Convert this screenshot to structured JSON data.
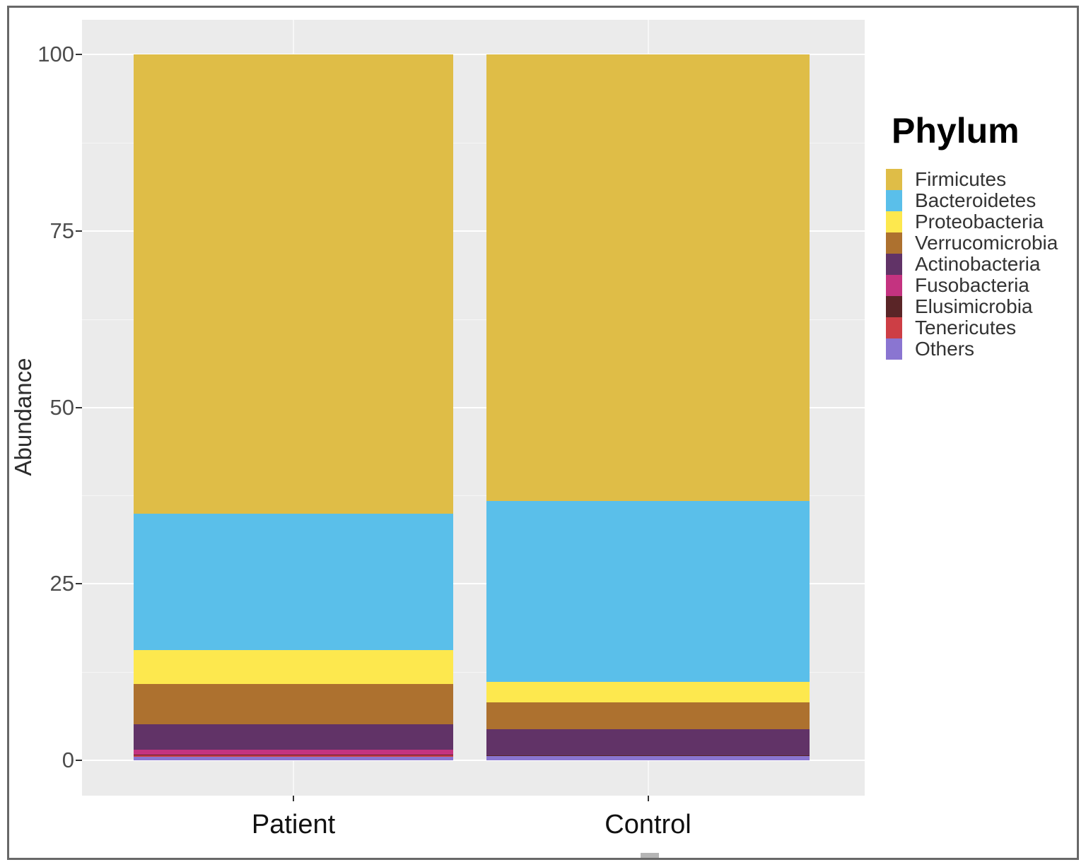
{
  "chart_data": {
    "type": "bar",
    "stacked": true,
    "legend_title": "Phylum",
    "legend_position": "right",
    "ylabel": "Abundance",
    "xlabel": "",
    "ylim": [
      0,
      100
    ],
    "yticks": [
      0,
      25,
      50,
      75,
      100
    ],
    "grid": true,
    "panel_bg": "#ebebeb",
    "gridline_color": "#ffffff",
    "categories": [
      "Patient",
      "Control"
    ],
    "stack_order": "first series renders at top of bar",
    "series": [
      {
        "name": "Firmicutes",
        "color": "#dfbd47",
        "values": [
          65.1,
          63.3
        ]
      },
      {
        "name": "Bacteroidetes",
        "color": "#5abfea",
        "values": [
          19.3,
          25.6
        ]
      },
      {
        "name": "Proteobacteria",
        "color": "#fde84e",
        "values": [
          4.8,
          2.9
        ]
      },
      {
        "name": "Verrucomicrobia",
        "color": "#ad712f",
        "values": [
          5.7,
          3.8
        ]
      },
      {
        "name": "Actinobacteria",
        "color": "#613367",
        "values": [
          3.6,
          3.7
        ]
      },
      {
        "name": "Fusobacteria",
        "color": "#c43380",
        "values": [
          0.7,
          0.05
        ]
      },
      {
        "name": "Elusimicrobia",
        "color": "#5a2527",
        "values": [
          0.15,
          0.05
        ]
      },
      {
        "name": "Tenericutes",
        "color": "#cd3e45",
        "values": [
          0.15,
          0.05
        ]
      },
      {
        "name": "Others",
        "color": "#8a75d1",
        "values": [
          0.5,
          0.55
        ]
      }
    ]
  }
}
